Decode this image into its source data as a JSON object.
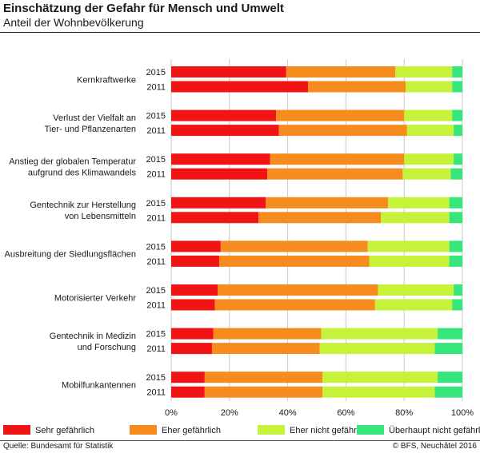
{
  "header": {
    "title": "Einschätzung der Gefahr für Mensch und Umwelt",
    "subtitle": "Anteil der Wohnbevölkerung"
  },
  "footer": {
    "source": "Quelle: Bundesamt für Statistik",
    "copyright": "© BFS, Neuchâtel 2016"
  },
  "colors": {
    "sehr": "#f01414",
    "eher": "#f78c1e",
    "ehernicht": "#c6f23a",
    "ueberhaupt": "#37e67a",
    "background": "#ffffff",
    "grid": "#c8c8c8"
  },
  "chart_data": {
    "type": "bar",
    "orientation": "horizontal",
    "stacked": true,
    "title": "Einschätzung der Gefahr für Mensch und Umwelt",
    "subtitle": "Anteil der Wohnbevölkerung",
    "xlim": [
      0,
      100
    ],
    "xticks": [
      "0%",
      "20%",
      "40%",
      "60%",
      "80%",
      "100%"
    ],
    "grid": true,
    "legend_position": "bottom",
    "series_names": [
      "Sehr gefährlich",
      "Eher gefährlich",
      "Eher nicht gefährlich",
      "Überhaupt nicht gefährlich"
    ],
    "series_keys": [
      "sehr",
      "eher",
      "ehernicht",
      "ueberhaupt"
    ],
    "categories": [
      {
        "label": [
          "Kernkraftwerke"
        ],
        "bars": [
          {
            "year": "2015",
            "values": [
              39.5,
              37.5,
              19.5,
              3.5
            ]
          },
          {
            "year": "2011",
            "values": [
              47,
              33.5,
              16,
              3.5
            ]
          }
        ]
      },
      {
        "label": [
          "Verlust der Vielfalt an",
          "Tier- und Pflanzenarten"
        ],
        "bars": [
          {
            "year": "2015",
            "values": [
              36,
              44,
              16.5,
              3.5
            ]
          },
          {
            "year": "2011",
            "values": [
              37,
              44,
              16,
              3
            ]
          }
        ]
      },
      {
        "label": [
          "Anstieg der globalen Temperatur",
          "aufgrund des Klimawandels"
        ],
        "bars": [
          {
            "year": "2015",
            "values": [
              34,
              46,
              17,
              3
            ]
          },
          {
            "year": "2011",
            "values": [
              33,
              46.5,
              16.5,
              4
            ]
          }
        ]
      },
      {
        "label": [
          "Gentechnik zur Herstellung",
          "von Lebensmitteln"
        ],
        "bars": [
          {
            "year": "2015",
            "values": [
              32.5,
              42,
              21,
              4.5
            ]
          },
          {
            "year": "2011",
            "values": [
              30,
              42,
              23.5,
              4.5
            ]
          }
        ]
      },
      {
        "label": [
          "Ausbreitung der Siedlungsflächen"
        ],
        "bars": [
          {
            "year": "2015",
            "values": [
              17,
              50.5,
              28,
              4.5
            ]
          },
          {
            "year": "2011",
            "values": [
              16.5,
              51.5,
              27.5,
              4.5
            ]
          }
        ]
      },
      {
        "label": [
          "Motorisierter Verkehr"
        ],
        "bars": [
          {
            "year": "2015",
            "values": [
              16,
              55,
              26,
              3
            ]
          },
          {
            "year": "2011",
            "values": [
              15,
              55,
              26.5,
              3.5
            ]
          }
        ]
      },
      {
        "label": [
          "Gentechnik in Medizin",
          "und Forschung"
        ],
        "bars": [
          {
            "year": "2015",
            "values": [
              14.5,
              37,
              40,
              8.5
            ]
          },
          {
            "year": "2011",
            "values": [
              14,
              37,
              39.5,
              9.5
            ]
          }
        ]
      },
      {
        "label": [
          "Mobilfunkantennen"
        ],
        "bars": [
          {
            "year": "2015",
            "values": [
              11.5,
              40.5,
              39.5,
              8.5
            ]
          },
          {
            "year": "2011",
            "values": [
              11.5,
              40.5,
              38.5,
              9.5
            ]
          }
        ]
      }
    ]
  }
}
